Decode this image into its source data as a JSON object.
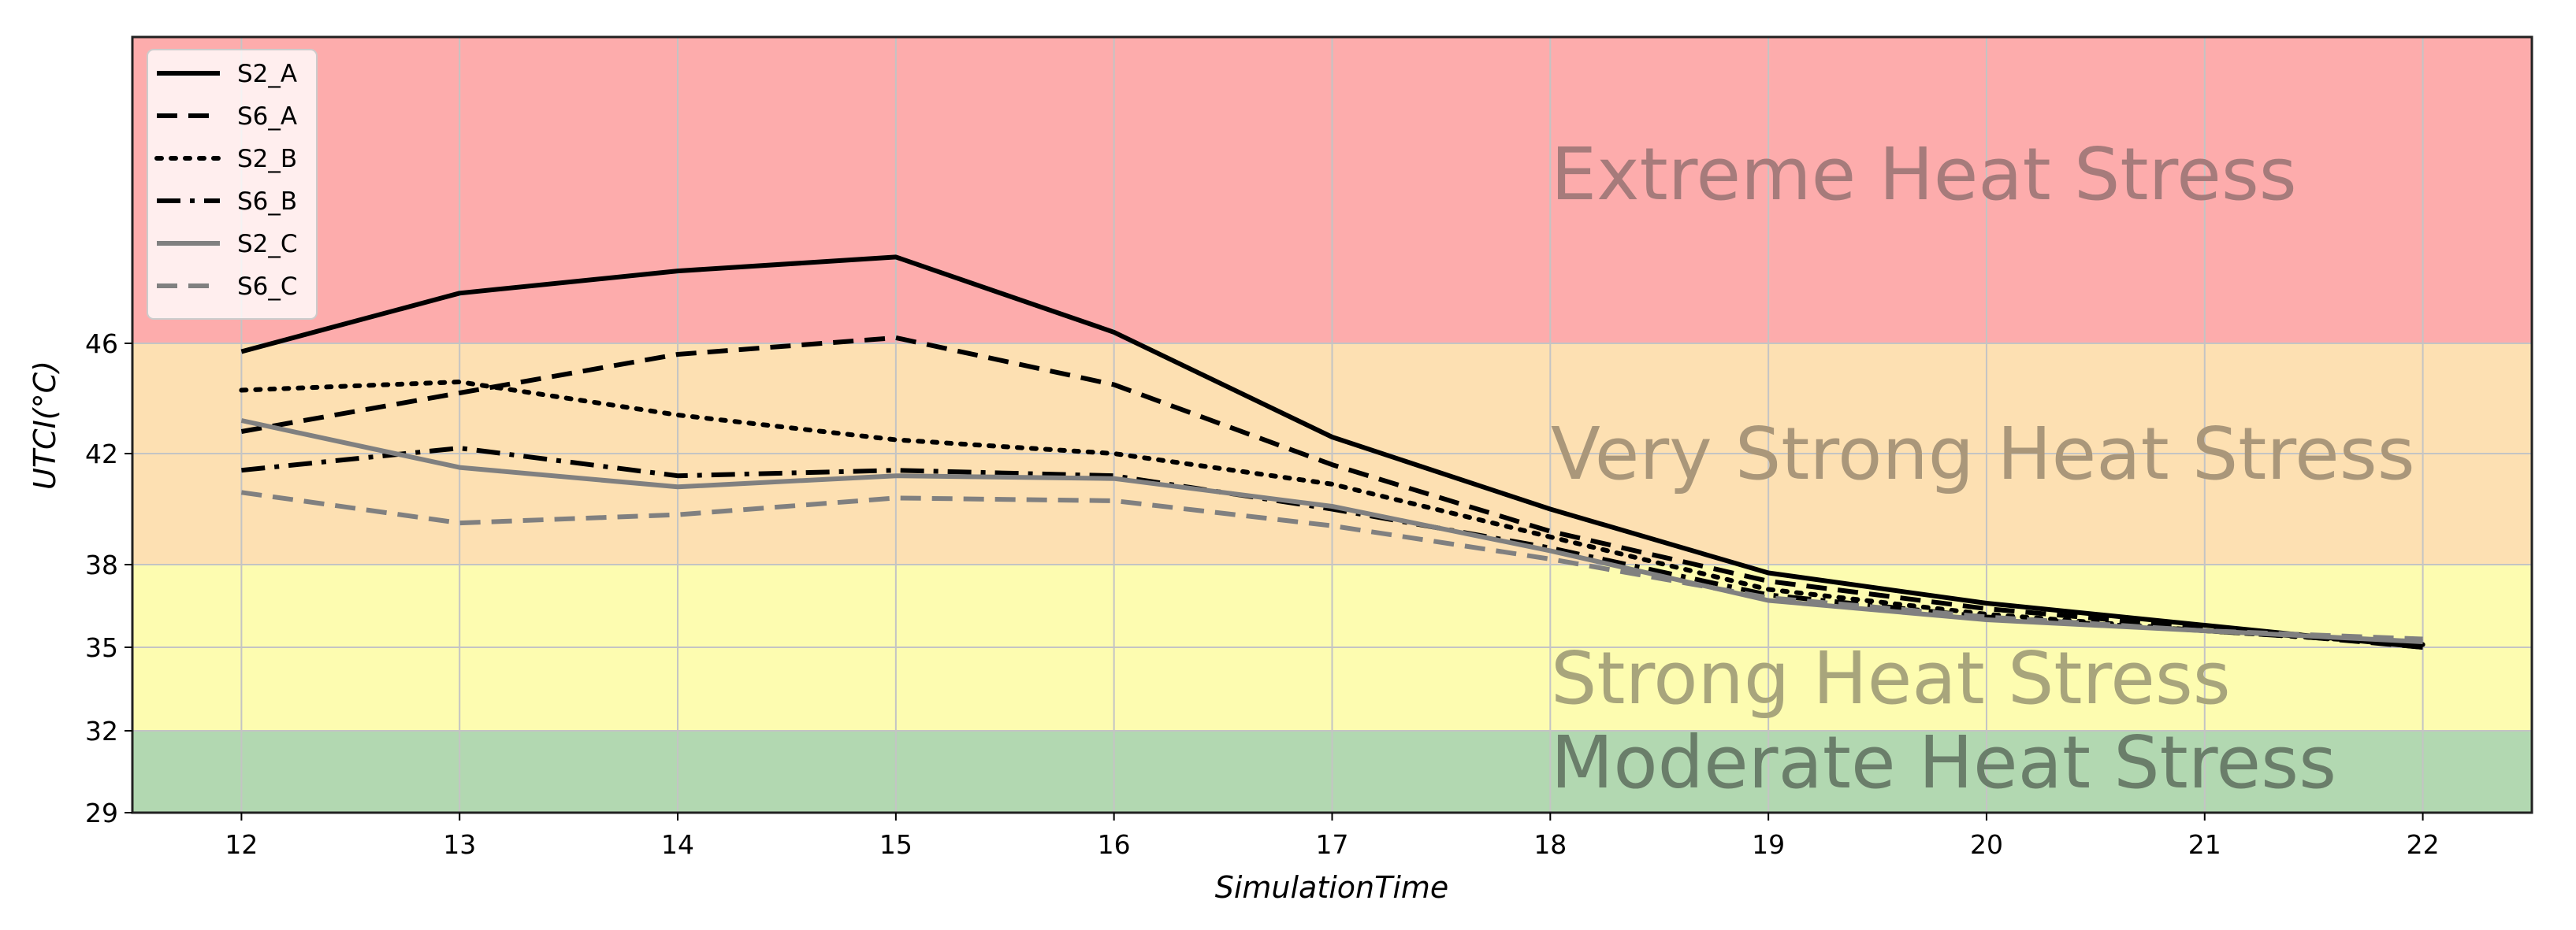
{
  "chart_data": {
    "type": "line",
    "title": "",
    "xlabel": "SimulationTime",
    "ylabel": "UTCI(°C)",
    "xlim": [
      11.5,
      22.5
    ],
    "ylim": [
      29,
      57
    ],
    "grid": true,
    "legend_position": "top-left",
    "x": [
      12,
      13,
      14,
      15,
      16,
      17,
      18,
      19,
      20,
      21,
      22
    ],
    "xticks": [
      "12",
      "13",
      "14",
      "15",
      "16",
      "17",
      "18",
      "19",
      "20",
      "21",
      "22"
    ],
    "yticks": [
      "29",
      "32",
      "35",
      "38",
      "42",
      "46"
    ],
    "zones": [
      {
        "name": "Extreme Heat Stress",
        "from": 46,
        "to": 57,
        "color": "#fdacac",
        "text_color": "#a67b7b"
      },
      {
        "name": "Very Strong Heat Stress",
        "from": 38,
        "to": 46,
        "color": "#fde0b2",
        "text_color": "#aa977a"
      },
      {
        "name": "Strong Heat Stress",
        "from": 32,
        "to": 38,
        "color": "#fdfcb0",
        "text_color": "#a8a57c"
      },
      {
        "name": "Moderate Heat Stress",
        "from": 29,
        "to": 32,
        "color": "#b2d8b1",
        "text_color": "#6a7e6a"
      }
    ],
    "series": [
      {
        "name": "S2_A",
        "style": "solid",
        "color": "#000000",
        "values": [
          45.7,
          47.8,
          48.6,
          49.1,
          46.4,
          42.6,
          40.0,
          37.7,
          36.6,
          35.8,
          35.0
        ]
      },
      {
        "name": "S6_A",
        "style": "dashed",
        "color": "#000000",
        "values": [
          42.8,
          44.2,
          45.6,
          46.2,
          44.5,
          41.6,
          39.2,
          37.4,
          36.4,
          35.7,
          35.0
        ]
      },
      {
        "name": "S2_B",
        "style": "dotted",
        "color": "#000000",
        "values": [
          44.3,
          44.6,
          43.4,
          42.5,
          42.0,
          40.9,
          39.0,
          37.1,
          36.2,
          35.6,
          35.1
        ]
      },
      {
        "name": "S6_B",
        "style": "dashdot",
        "color": "#000000",
        "values": [
          41.4,
          42.2,
          41.2,
          41.4,
          41.2,
          40.0,
          38.6,
          36.9,
          36.1,
          35.6,
          35.1
        ]
      },
      {
        "name": "S2_C",
        "style": "solid",
        "color": "#808080",
        "values": [
          43.2,
          41.5,
          40.8,
          41.2,
          41.1,
          40.1,
          38.5,
          36.7,
          36.0,
          35.6,
          35.2
        ]
      },
      {
        "name": "S6_C",
        "style": "dashed",
        "color": "#808080",
        "values": [
          40.6,
          39.5,
          39.8,
          40.4,
          40.3,
          39.4,
          38.2,
          36.8,
          36.1,
          35.6,
          35.3
        ]
      }
    ]
  }
}
